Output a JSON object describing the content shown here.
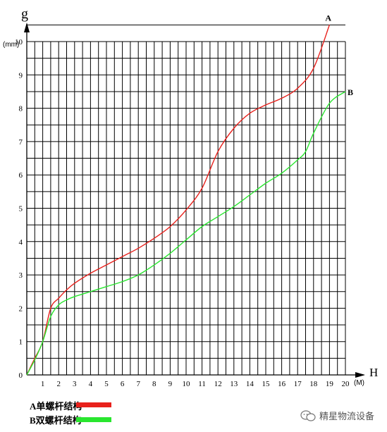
{
  "chart_data": {
    "type": "line",
    "xlabel": "H",
    "ylabel": "g",
    "x_unit": "(M)",
    "y_unit": "(mm)",
    "xlim": [
      0,
      20
    ],
    "ylim": [
      0,
      10
    ],
    "x_ticks": [
      "1",
      "2",
      "3",
      "4",
      "5",
      "6",
      "7",
      "8",
      "9",
      "10",
      "11",
      "12",
      "13",
      "14",
      "15",
      "16",
      "17",
      "18",
      "19",
      "20"
    ],
    "y_ticks": [
      "0",
      "1",
      "2",
      "3",
      "4",
      "5",
      "6",
      "7",
      "8",
      "9",
      "10"
    ],
    "grid": true,
    "series": [
      {
        "name": "A单螺杆结构",
        "end_label": "A",
        "color": "#e8211c",
        "points": [
          [
            0,
            0
          ],
          [
            0.5,
            0.5
          ],
          [
            1,
            1
          ],
          [
            1.5,
            2
          ],
          [
            2,
            2.3
          ],
          [
            2.5,
            2.55
          ],
          [
            3,
            2.75
          ],
          [
            4,
            3.05
          ],
          [
            5,
            3.3
          ],
          [
            6,
            3.55
          ],
          [
            7,
            3.8
          ],
          [
            8,
            4.1
          ],
          [
            9,
            4.45
          ],
          [
            10,
            4.95
          ],
          [
            11,
            5.6
          ],
          [
            12,
            6.7
          ],
          [
            13,
            7.4
          ],
          [
            14,
            7.85
          ],
          [
            15,
            8.1
          ],
          [
            16,
            8.3
          ],
          [
            17,
            8.6
          ],
          [
            18,
            9.2
          ],
          [
            19,
            10.5
          ]
        ]
      },
      {
        "name": "B双螺杆结构",
        "end_label": "B",
        "color": "#29e62f",
        "points": [
          [
            0,
            0
          ],
          [
            0.5,
            0.45
          ],
          [
            1,
            1
          ],
          [
            1.5,
            1.75
          ],
          [
            2,
            2.1
          ],
          [
            2.5,
            2.25
          ],
          [
            3,
            2.35
          ],
          [
            4,
            2.5
          ],
          [
            5,
            2.65
          ],
          [
            6,
            2.8
          ],
          [
            7,
            3.0
          ],
          [
            8,
            3.3
          ],
          [
            9,
            3.65
          ],
          [
            10,
            4.05
          ],
          [
            11,
            4.45
          ],
          [
            12,
            4.75
          ],
          [
            13,
            5.05
          ],
          [
            14,
            5.4
          ],
          [
            15,
            5.75
          ],
          [
            16,
            6.05
          ],
          [
            17,
            6.45
          ],
          [
            17.5,
            6.7
          ],
          [
            18,
            7.25
          ],
          [
            19,
            8.15
          ],
          [
            20,
            8.5
          ]
        ]
      }
    ]
  },
  "watermark": {
    "text": "精星物流设备"
  }
}
